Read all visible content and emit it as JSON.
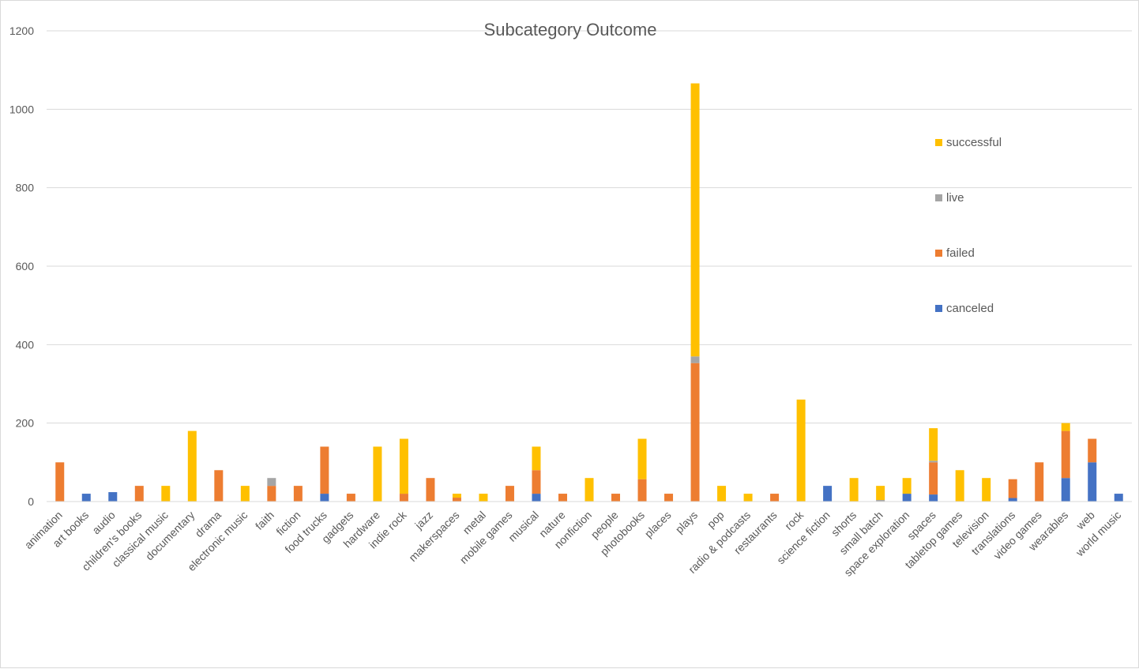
{
  "chart_data": {
    "type": "bar",
    "stacked": true,
    "title": "Subcategory Outcome",
    "xlabel": "",
    "ylabel": "",
    "ylim": [
      0,
      1200
    ],
    "yticks": [
      0,
      200,
      400,
      600,
      800,
      1000,
      1200
    ],
    "grid": true,
    "legend_position": "right",
    "categories": [
      "animation",
      "art books",
      "audio",
      "children's books",
      "classical music",
      "documentary",
      "drama",
      "electronic music",
      "faith",
      "fiction",
      "food trucks",
      "gadgets",
      "hardware",
      "indie rock",
      "jazz",
      "makerspaces",
      "metal",
      "mobile games",
      "musical",
      "nature",
      "nonfiction",
      "people",
      "photobooks",
      "places",
      "plays",
      "pop",
      "radio & podcasts",
      "restaurants",
      "rock",
      "science fiction",
      "shorts",
      "small batch",
      "space exploration",
      "spaces",
      "tabletop games",
      "television",
      "translations",
      "video games",
      "wearables",
      "web",
      "world music"
    ],
    "series": [
      {
        "name": "canceled",
        "color": "#4472C4",
        "values": [
          0,
          20,
          24,
          0,
          0,
          0,
          0,
          0,
          0,
          0,
          20,
          0,
          0,
          0,
          0,
          0,
          0,
          0,
          20,
          0,
          0,
          0,
          0,
          0,
          0,
          0,
          0,
          0,
          0,
          40,
          0,
          0,
          20,
          18,
          0,
          0,
          9,
          0,
          60,
          100,
          20
        ]
      },
      {
        "name": "failed",
        "color": "#ED7D31",
        "values": [
          100,
          0,
          0,
          40,
          0,
          0,
          80,
          0,
          40,
          40,
          120,
          20,
          0,
          20,
          60,
          10,
          0,
          40,
          60,
          20,
          0,
          20,
          57,
          20,
          353,
          0,
          0,
          20,
          0,
          0,
          0,
          0,
          0,
          82,
          0,
          0,
          48,
          100,
          120,
          60,
          0
        ]
      },
      {
        "name": "live",
        "color": "#A5A5A5",
        "values": [
          0,
          0,
          0,
          0,
          0,
          0,
          0,
          0,
          20,
          0,
          0,
          0,
          0,
          0,
          0,
          0,
          0,
          0,
          0,
          0,
          0,
          0,
          0,
          0,
          17,
          0,
          0,
          0,
          0,
          0,
          0,
          4,
          0,
          4,
          0,
          0,
          0,
          0,
          0,
          0,
          0
        ]
      },
      {
        "name": "successful",
        "color": "#FFC000",
        "values": [
          0,
          0,
          0,
          0,
          40,
          180,
          0,
          40,
          0,
          0,
          0,
          0,
          140,
          140,
          0,
          10,
          20,
          0,
          60,
          0,
          60,
          0,
          103,
          0,
          696,
          40,
          20,
          0,
          260,
          0,
          60,
          36,
          40,
          83,
          80,
          60,
          0,
          0,
          20,
          0,
          0
        ]
      }
    ],
    "legend_order": [
      "successful",
      "live",
      "failed",
      "canceled"
    ]
  }
}
